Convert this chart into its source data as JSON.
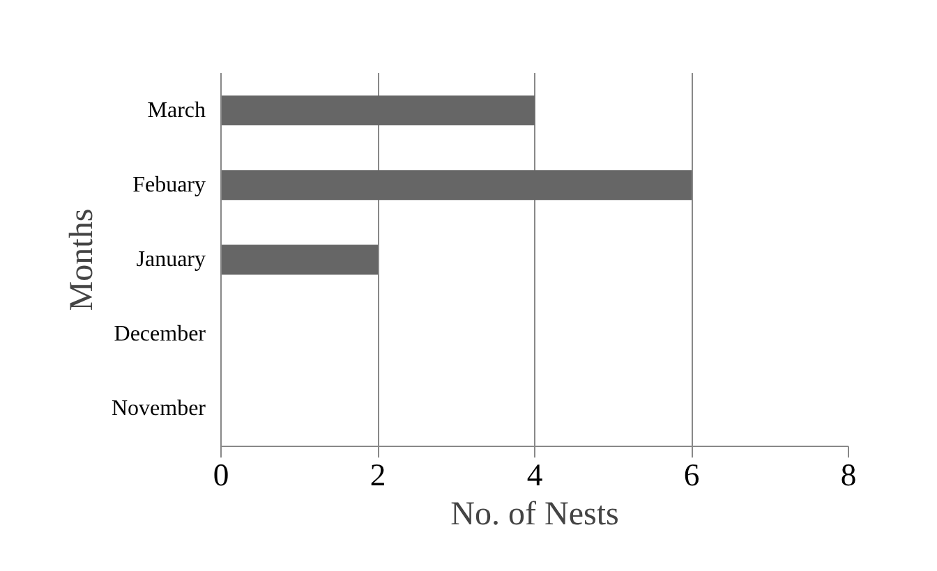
{
  "chart_data": {
    "type": "bar",
    "orientation": "horizontal",
    "xlabel": "No. of Nests",
    "ylabel": "Months",
    "categories": [
      "March",
      "Febuary",
      "January",
      "December",
      "November"
    ],
    "values": [
      4,
      6,
      2,
      0,
      0
    ],
    "color": "#666666",
    "xlim": [
      0,
      8
    ],
    "xticks": [
      0,
      2,
      4,
      6,
      8
    ],
    "grid": "x"
  }
}
